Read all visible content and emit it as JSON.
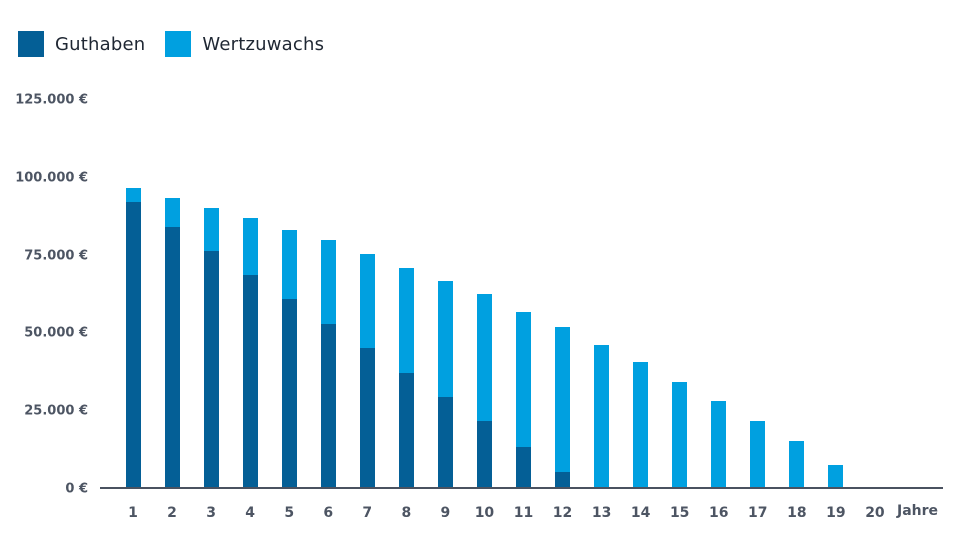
{
  "legend": {
    "items": [
      {
        "label": "Guthaben",
        "color": "#045f96"
      },
      {
        "label": "Wertzuwachs",
        "color": "#00a0e0"
      }
    ]
  },
  "axes": {
    "y_ticks": [
      "125.000 €",
      "100.000 €",
      "75.000 €",
      "50.000 €",
      "25.000 €",
      "0 €"
    ],
    "x_ticks": [
      "1",
      "2",
      "3",
      "4",
      "5",
      "6",
      "7",
      "8",
      "9",
      "10",
      "11",
      "12",
      "13",
      "14",
      "15",
      "16",
      "17",
      "18",
      "19",
      "20"
    ],
    "x_unit": "Jahre"
  },
  "chart_data": {
    "type": "bar",
    "stacked": true,
    "title": "",
    "xlabel": "Jahre",
    "ylabel": "",
    "ylim": [
      0,
      125000
    ],
    "y_tick_values": [
      0,
      25000,
      50000,
      75000,
      100000,
      125000
    ],
    "y_tick_labels": [
      "0 €",
      "25.000 €",
      "50.000 €",
      "75.000 €",
      "100.000 €",
      "125.000 €"
    ],
    "grid": false,
    "legend_position": "top-left",
    "categories": [
      "1",
      "2",
      "3",
      "4",
      "5",
      "6",
      "7",
      "8",
      "9",
      "10",
      "11",
      "12",
      "13",
      "14",
      "15",
      "16",
      "17",
      "18",
      "19",
      "20"
    ],
    "series": [
      {
        "name": "Guthaben",
        "color": "#045f96",
        "values": [
          92000,
          84000,
          76200,
          68500,
          60800,
          52700,
          45000,
          37000,
          29300,
          21500,
          13200,
          5100,
          0,
          0,
          0,
          0,
          0,
          0,
          0,
          0
        ]
      },
      {
        "name": "Wertzuwachs",
        "color": "#00a0e0",
        "values": [
          4500,
          9200,
          13800,
          18300,
          22200,
          27000,
          30200,
          33700,
          37300,
          40900,
          43400,
          46700,
          46000,
          40500,
          34100,
          28000,
          21500,
          15100,
          7400,
          0
        ]
      }
    ],
    "totals": [
      96500,
      93200,
      90000,
      86800,
      83000,
      79700,
      75200,
      70700,
      66600,
      62400,
      56600,
      51800,
      46000,
      40500,
      34100,
      28000,
      21500,
      15100,
      7400,
      0
    ]
  }
}
